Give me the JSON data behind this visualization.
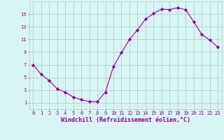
{
  "x": [
    0,
    1,
    2,
    3,
    4,
    5,
    6,
    7,
    8,
    9,
    10,
    11,
    12,
    13,
    14,
    15,
    16,
    17,
    18,
    19,
    20,
    21,
    22,
    23
  ],
  "y": [
    7.0,
    5.5,
    4.5,
    3.2,
    2.7,
    1.9,
    1.5,
    1.2,
    1.2,
    2.7,
    6.7,
    8.9,
    11.0,
    12.5,
    14.2,
    15.1,
    15.8,
    15.7,
    16.0,
    15.7,
    13.8,
    11.8,
    10.9,
    9.8
  ],
  "line_color": "#990099",
  "marker": "D",
  "marker_size": 2.2,
  "bg_color": "#d8f5f5",
  "grid_color": "#b0c8c8",
  "xlabel": "Windchill (Refroidissement éolien,°C)",
  "xlim": [
    -0.5,
    23.5
  ],
  "ylim": [
    0,
    17
  ],
  "yticks": [
    1,
    3,
    5,
    7,
    9,
    11,
    13,
    15
  ],
  "xticks": [
    0,
    1,
    2,
    3,
    4,
    5,
    6,
    7,
    8,
    9,
    10,
    11,
    12,
    13,
    14,
    15,
    16,
    17,
    18,
    19,
    20,
    21,
    22,
    23
  ],
  "font_color": "#990099",
  "tick_fontsize": 5.0,
  "xlabel_fontsize": 6.0
}
